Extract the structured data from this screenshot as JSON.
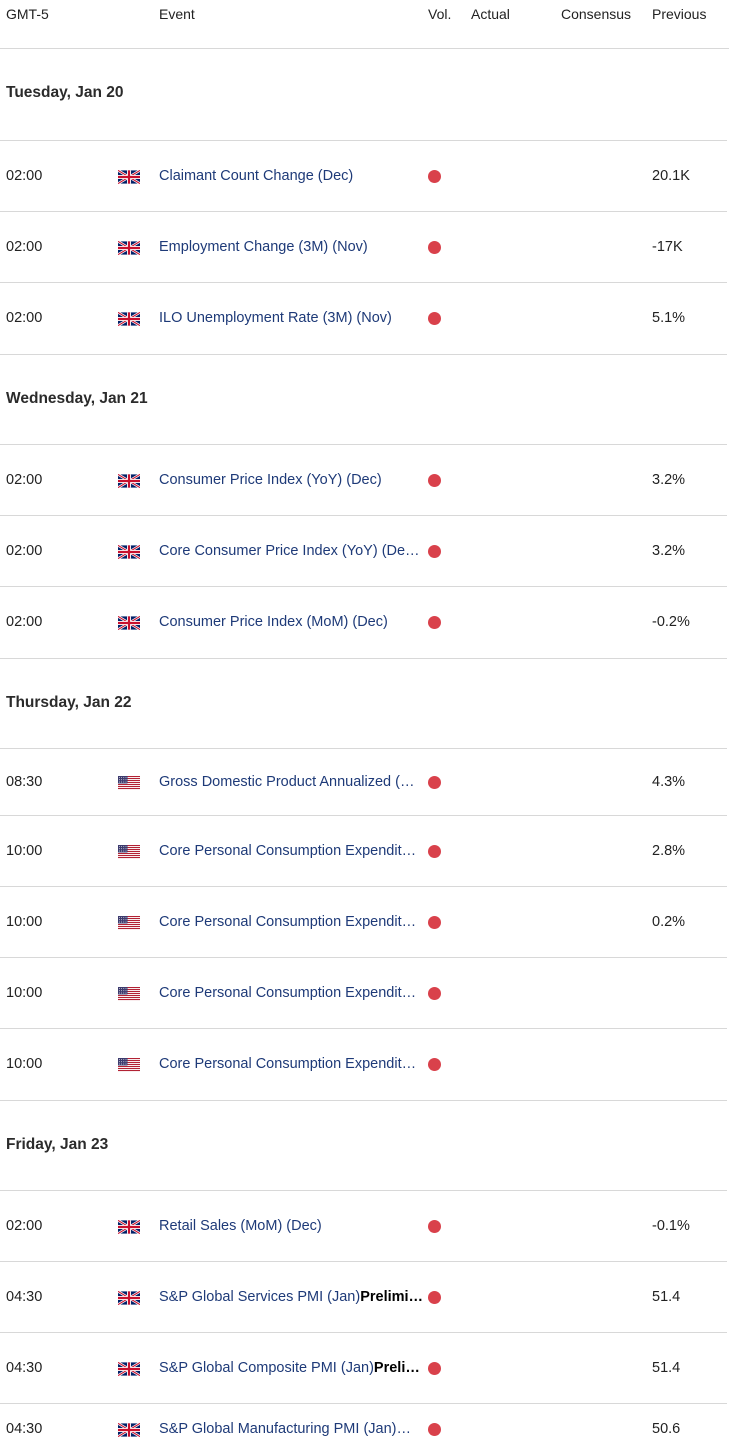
{
  "header": {
    "timezone": "GMT-5",
    "event": "Event",
    "vol": "Vol.",
    "actual": "Actual",
    "consensus": "Consensus",
    "previous": "Previous"
  },
  "colors": {
    "volatility_high": "#d9414b",
    "event_text": "#1e3a78",
    "divider": "#d8d8d8"
  },
  "days": [
    {
      "label": "Tuesday, Jan 20",
      "events": [
        {
          "time": "02:00",
          "flag": "uk-flag-icon",
          "name": "Claimant Count Change (Dec)",
          "extra": "",
          "actual": "",
          "consensus": "",
          "previous": "20.1K"
        },
        {
          "time": "02:00",
          "flag": "uk-flag-icon",
          "name": "Employment Change (3M) (Nov)",
          "extra": "",
          "actual": "",
          "consensus": "",
          "previous": "-17K"
        },
        {
          "time": "02:00",
          "flag": "uk-flag-icon",
          "name": "ILO Unemployment Rate (3M) (Nov)",
          "extra": "",
          "actual": "",
          "consensus": "",
          "previous": "5.1%"
        }
      ]
    },
    {
      "label": "Wednesday, Jan 21",
      "events": [
        {
          "time": "02:00",
          "flag": "uk-flag-icon",
          "name": "Consumer Price Index (YoY) (Dec)",
          "extra": "",
          "actual": "",
          "consensus": "",
          "previous": "3.2%"
        },
        {
          "time": "02:00",
          "flag": "uk-flag-icon",
          "name": "Core Consumer Price Index (YoY) (De…",
          "extra": "",
          "actual": "",
          "consensus": "",
          "previous": "3.2%"
        },
        {
          "time": "02:00",
          "flag": "uk-flag-icon",
          "name": "Consumer Price Index (MoM) (Dec)",
          "extra": "",
          "actual": "",
          "consensus": "",
          "previous": "-0.2%"
        }
      ]
    },
    {
      "label": "Thursday, Jan 22",
      "events": [
        {
          "time": "08:30",
          "flag": "us-flag-icon",
          "name": "Gross Domestic Product Annualized (…",
          "extra": "",
          "actual": "",
          "consensus": "",
          "previous": "4.3%"
        },
        {
          "time": "10:00",
          "flag": "us-flag-icon",
          "name": "Core Personal Consumption Expendit…",
          "extra": "",
          "actual": "",
          "consensus": "",
          "previous": "2.8%"
        },
        {
          "time": "10:00",
          "flag": "us-flag-icon",
          "name": "Core Personal Consumption Expendit…",
          "extra": "",
          "actual": "",
          "consensus": "",
          "previous": "0.2%"
        },
        {
          "time": "10:00",
          "flag": "us-flag-icon",
          "name": "Core Personal Consumption Expendit…",
          "extra": "",
          "actual": "",
          "consensus": "",
          "previous": ""
        },
        {
          "time": "10:00",
          "flag": "us-flag-icon",
          "name": "Core Personal Consumption Expendit…",
          "extra": "",
          "actual": "",
          "consensus": "",
          "previous": ""
        }
      ]
    },
    {
      "label": "Friday, Jan 23",
      "events": [
        {
          "time": "02:00",
          "flag": "uk-flag-icon",
          "name": "Retail Sales (MoM) (Dec)",
          "extra": "",
          "actual": "",
          "consensus": "",
          "previous": "-0.1%"
        },
        {
          "time": "04:30",
          "flag": "uk-flag-icon",
          "name": "S&P Global Services PMI (Jan)",
          "extra": "Prelimi…",
          "actual": "",
          "consensus": "",
          "previous": "51.4"
        },
        {
          "time": "04:30",
          "flag": "uk-flag-icon",
          "name": "S&P Global Composite PMI (Jan)",
          "extra": "Preli…",
          "actual": "",
          "consensus": "",
          "previous": "51.4"
        },
        {
          "time": "04:30",
          "flag": "uk-flag-icon",
          "name": "S&P Global Manufacturing PMI (Jan)…",
          "extra": "",
          "actual": "",
          "consensus": "",
          "previous": "50.6"
        }
      ]
    }
  ]
}
